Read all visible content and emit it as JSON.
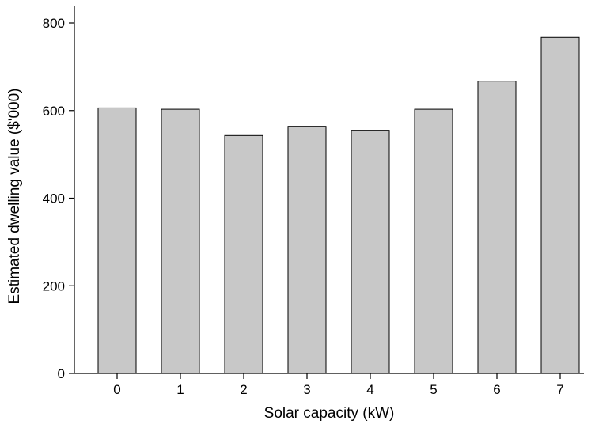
{
  "chart_data": {
    "type": "bar",
    "title": "",
    "xlabel": "Solar capacity (kW)",
    "ylabel": "Estimated dwelling value ($'000)",
    "categories": [
      "0",
      "1",
      "2",
      "3",
      "4",
      "5",
      "6",
      "7"
    ],
    "values": [
      606,
      603,
      543,
      564,
      555,
      603,
      667,
      767
    ],
    "ylim": [
      0,
      800
    ],
    "yticks": [
      "0",
      "200",
      "400",
      "600",
      "800"
    ],
    "grid": false,
    "legend": "none",
    "bar_color": "#c8c8c8",
    "edge_color": "#000000"
  }
}
